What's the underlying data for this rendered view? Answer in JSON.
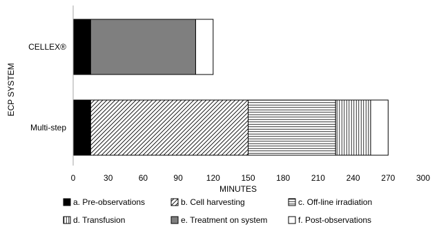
{
  "chart_data": {
    "type": "bar",
    "orientation": "horizontal",
    "stacked": true,
    "title": "",
    "xlabel": "MINUTES",
    "ylabel": "ECP SYSTEM",
    "xlim": [
      0,
      300
    ],
    "xticks": [
      0,
      30,
      60,
      90,
      120,
      150,
      180,
      210,
      240,
      270,
      300
    ],
    "categories": [
      "CELLEX®",
      "Multi-step"
    ],
    "grid": false,
    "legend_position": "bottom",
    "series": [
      {
        "name": "a. Pre-observations",
        "pattern": "solid-black",
        "values": [
          15,
          15
        ]
      },
      {
        "name": "b. Cell harvesting",
        "pattern": "diagonal-hatch",
        "values": [
          0,
          135
        ]
      },
      {
        "name": "c. Off-line irradiation",
        "pattern": "horizontal-lines",
        "values": [
          0,
          75
        ]
      },
      {
        "name": "d. Transfusion",
        "pattern": "vertical-lines",
        "values": [
          0,
          30
        ]
      },
      {
        "name": "e. Treatment on system",
        "pattern": "solid-gray",
        "values": [
          90,
          0
        ]
      },
      {
        "name": "f. Post-observations",
        "pattern": "white",
        "values": [
          15,
          15
        ]
      }
    ]
  }
}
